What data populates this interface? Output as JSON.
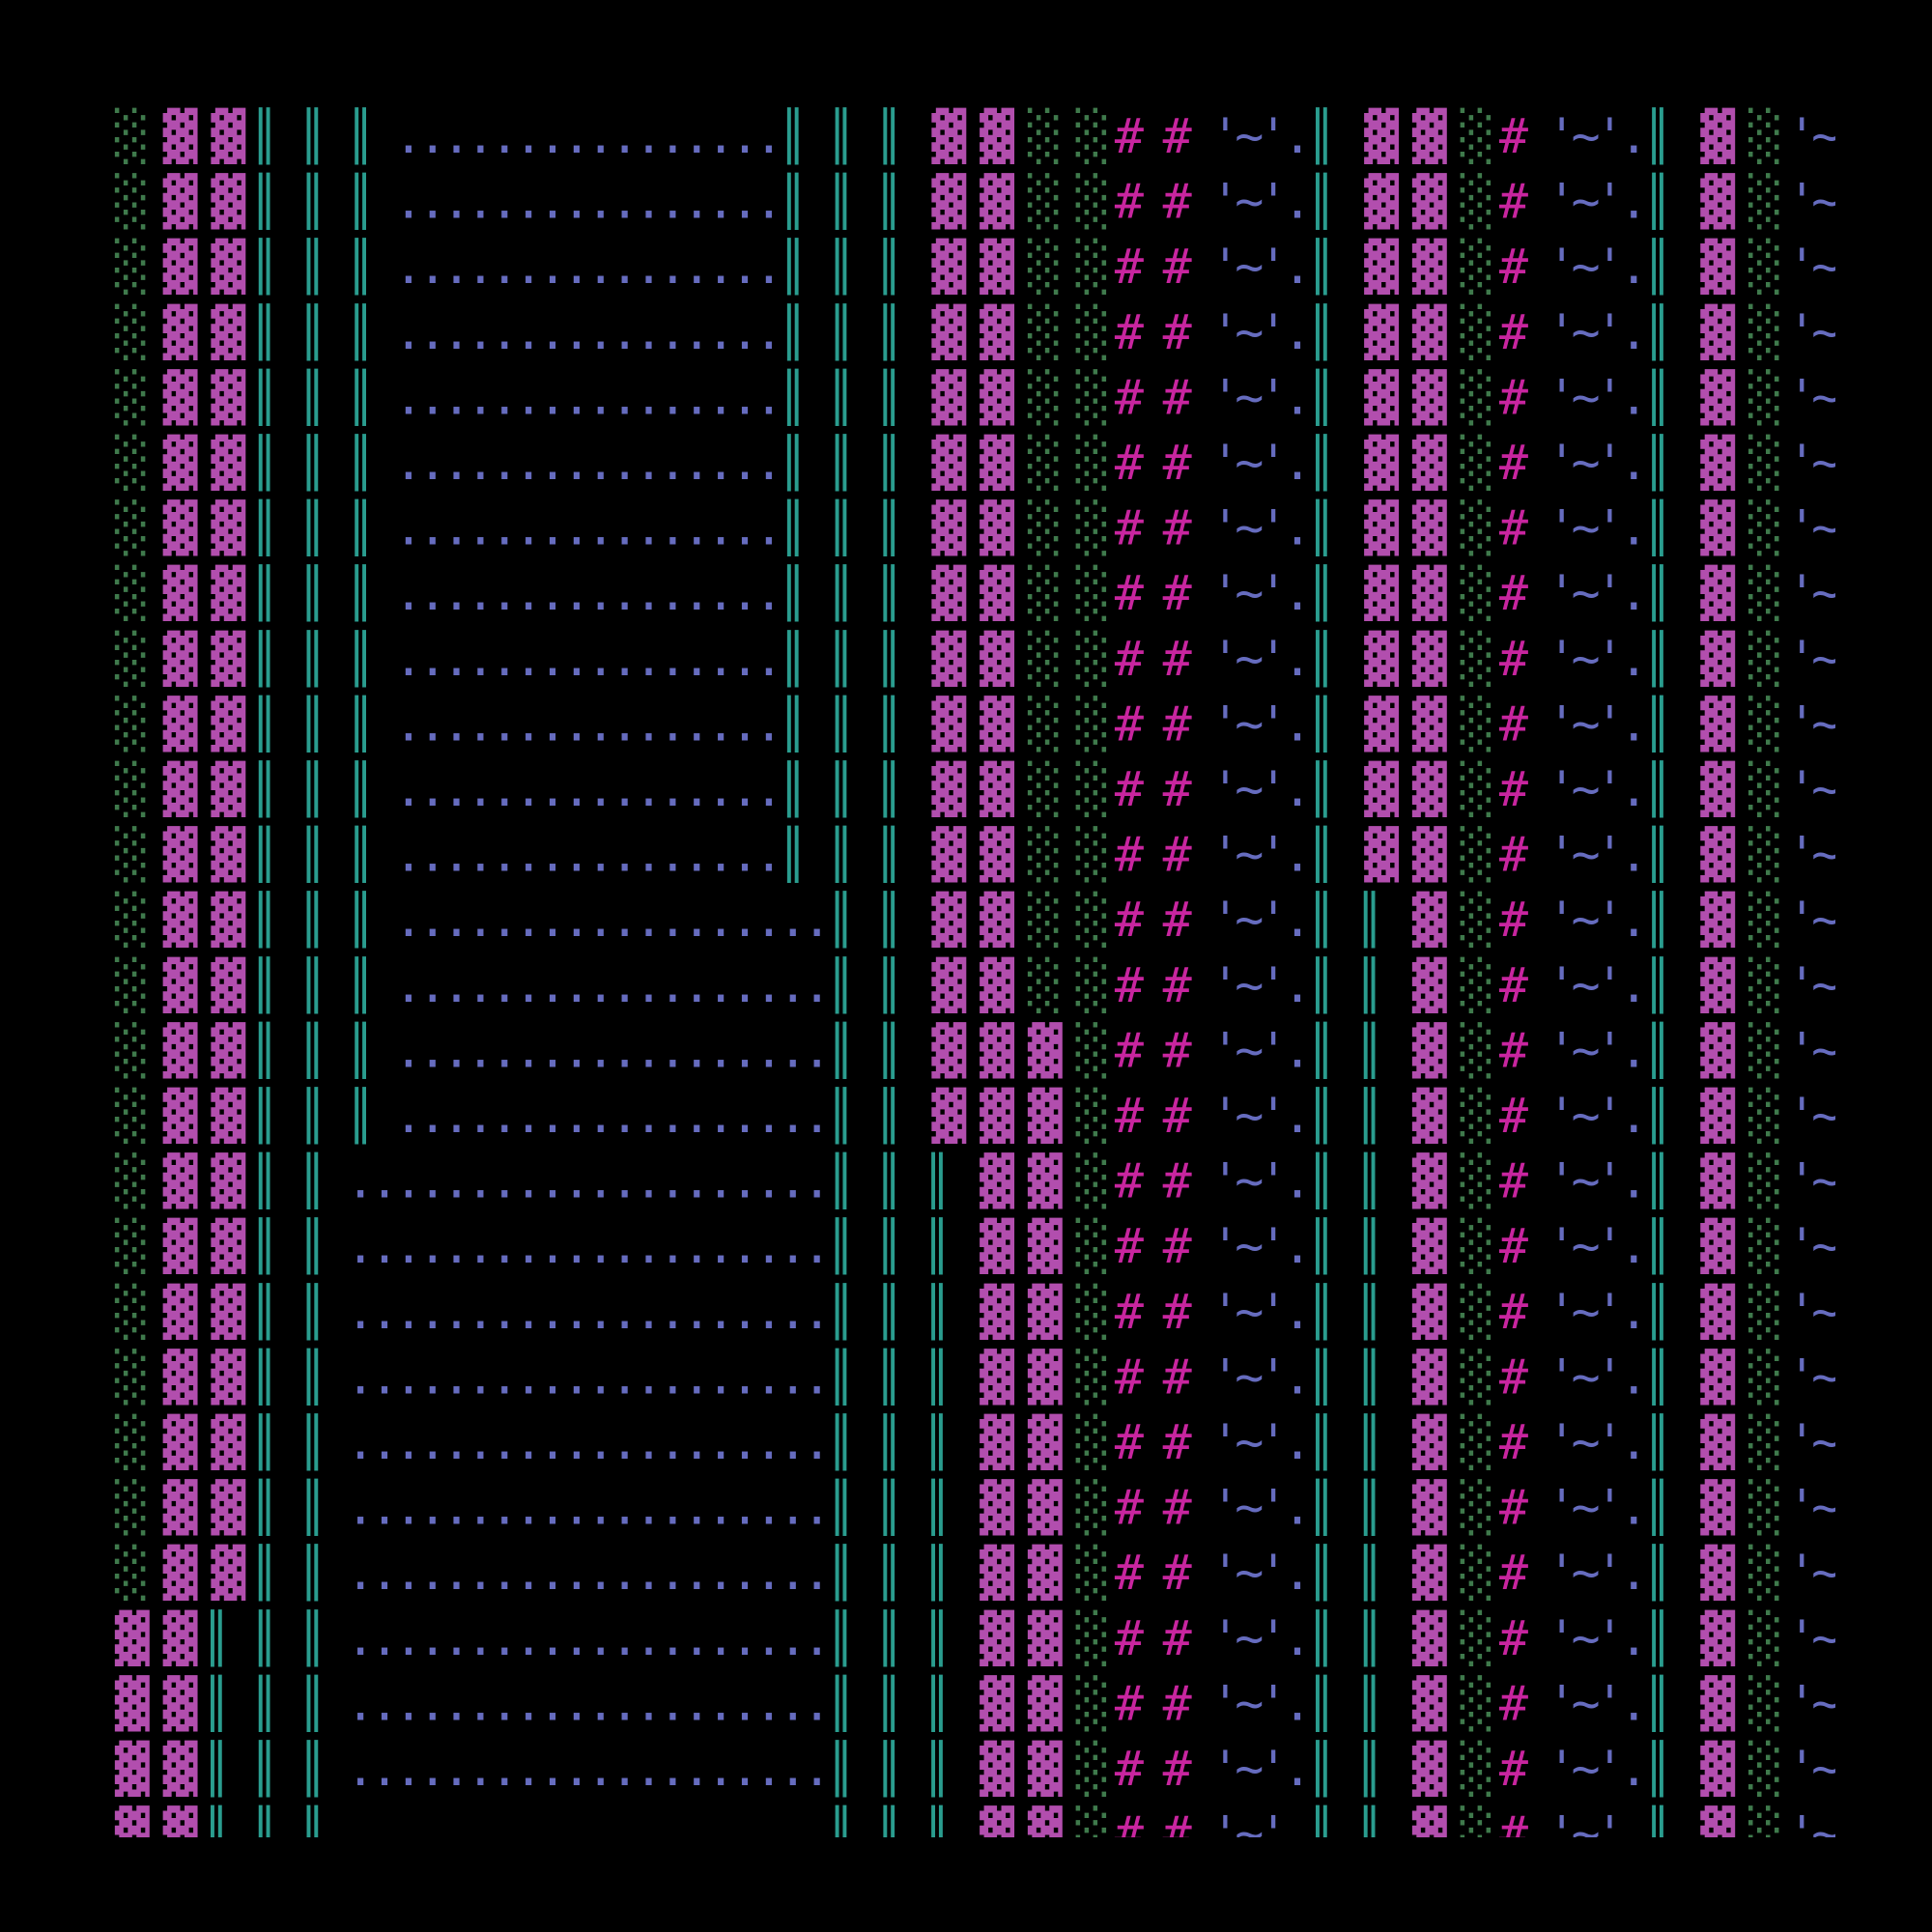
{
  "screen": {
    "rows": [
      "░▓▓║ ║ ║ ................║ ║ ║ ▓▓░░# # '~'.║ ▓▓░# '~'.║ ▓░'~'.",
      "░▓▓║ ║ ║ ................║ ║ ║ ▓▓░░# # '~'.║ ▓▓░# '~'.║ ▓░'~'.",
      "░▓▓║ ║ ║ ................║ ║ ║ ▓▓░░# # '~'.║ ▓▓░# '~'.║ ▓░'~'.",
      "░▓▓║ ║ ║ ................║ ║ ║ ▓▓░░# # '~'.║ ▓▓░# '~'.║ ▓░'~'.",
      "░▓▓║ ║ ║ ................║ ║ ║ ▓▓░░# # '~'.║ ▓▓░# '~'.║ ▓░'~'.",
      "░▓▓║ ║ ║ ................║ ║ ║ ▓▓░░# # '~'.║ ▓▓░# '~'.║ ▓░'~'.",
      "░▓▓║ ║ ║ ................║ ║ ║ ▓▓░░# # '~'.║ ▓▓░# '~'.║ ▓░'~'.",
      "░▓▓║ ║ ║ ................║ ║ ║ ▓▓░░# # '~'.║ ▓▓░# '~'.║ ▓░'~'.",
      "░▓▓║ ║ ║ ................║ ║ ║ ▓▓░░# # '~'.║ ▓▓░# '~'.║ ▓░'~'.",
      "░▓▓║ ║ ║ ................║ ║ ║ ▓▓░░# # '~'.║ ▓▓░# '~'.║ ▓░'~'.",
      "░▓▓║ ║ ║ ................║ ║ ║ ▓▓░░# # '~'.║ ▓▓░# '~'.║ ▓░'~'.",
      "░▓▓║ ║ ║ ................║ ║ ║ ▓▓░░# # '~'.║ ▓▓░# '~'.║ ▓░'~'.",
      "░▓▓║ ║ ║ ..................║ ║ ▓▓░░# # '~'.║ ║ ▓░# '~'.║ ▓░'~'.",
      "░▓▓║ ║ ║ ..................║ ║ ▓▓░░# # '~'.║ ║ ▓░# '~'.║ ▓░'~'.",
      "░▓▓║ ║ ║ ..................║ ║ ▓▓▓░# # '~'.║ ║ ▓░# '~'.║ ▓░'~'.",
      "░▓▓║ ║ ║ ..................║ ║ ▓▓▓░# # '~'.║ ║ ▓░# '~'.║ ▓░'~'.",
      "░▓▓║ ║ ....................║ ║ ║ ▓▓░# # '~'.║ ║ ▓░# '~'.║ ▓░'~'.",
      "░▓▓║ ║ ....................║ ║ ║ ▓▓░# # '~'.║ ║ ▓░# '~'.║ ▓░'~'.",
      "░▓▓║ ║ ....................║ ║ ║ ▓▓░# # '~'.║ ║ ▓░# '~'.║ ▓░'~'.",
      "░▓▓║ ║ ....................║ ║ ║ ▓▓░# # '~'.║ ║ ▓░# '~'.║ ▓░'~'.",
      "░▓▓║ ║ ....................║ ║ ║ ▓▓░# # '~'.║ ║ ▓░# '~'.║ ▓░'~'.",
      "░▓▓║ ║ ....................║ ║ ║ ▓▓░# # '~'.║ ║ ▓░# '~'.║ ▓░'~'.",
      "░▓▓║ ║ ....................║ ║ ║ ▓▓░# # '~'.║ ║ ▓░# '~'.║ ▓░'~'.",
      "▓▓║ ║ ║ ....................║ ║ ║ ▓▓░# # '~'.║ ║ ▓░# '~'.║ ▓░'~'.",
      "▓▓║ ║ ║ ....................║ ║ ║ ▓▓░# # '~'.║ ║ ▓░# '~'.║ ▓░'~'.",
      "▓▓║ ║ ║ ....................║ ║ ║ ▓▓░# # '~'.║ ║ ▓░# '~'.║ ▓░'~'.",
      "▓▓║ ║ ║                     ║ ║ ║ ▓▓░# # '~'.║ ║ ▓░# '~'.║ ▓░'~'."
    ]
  }
}
